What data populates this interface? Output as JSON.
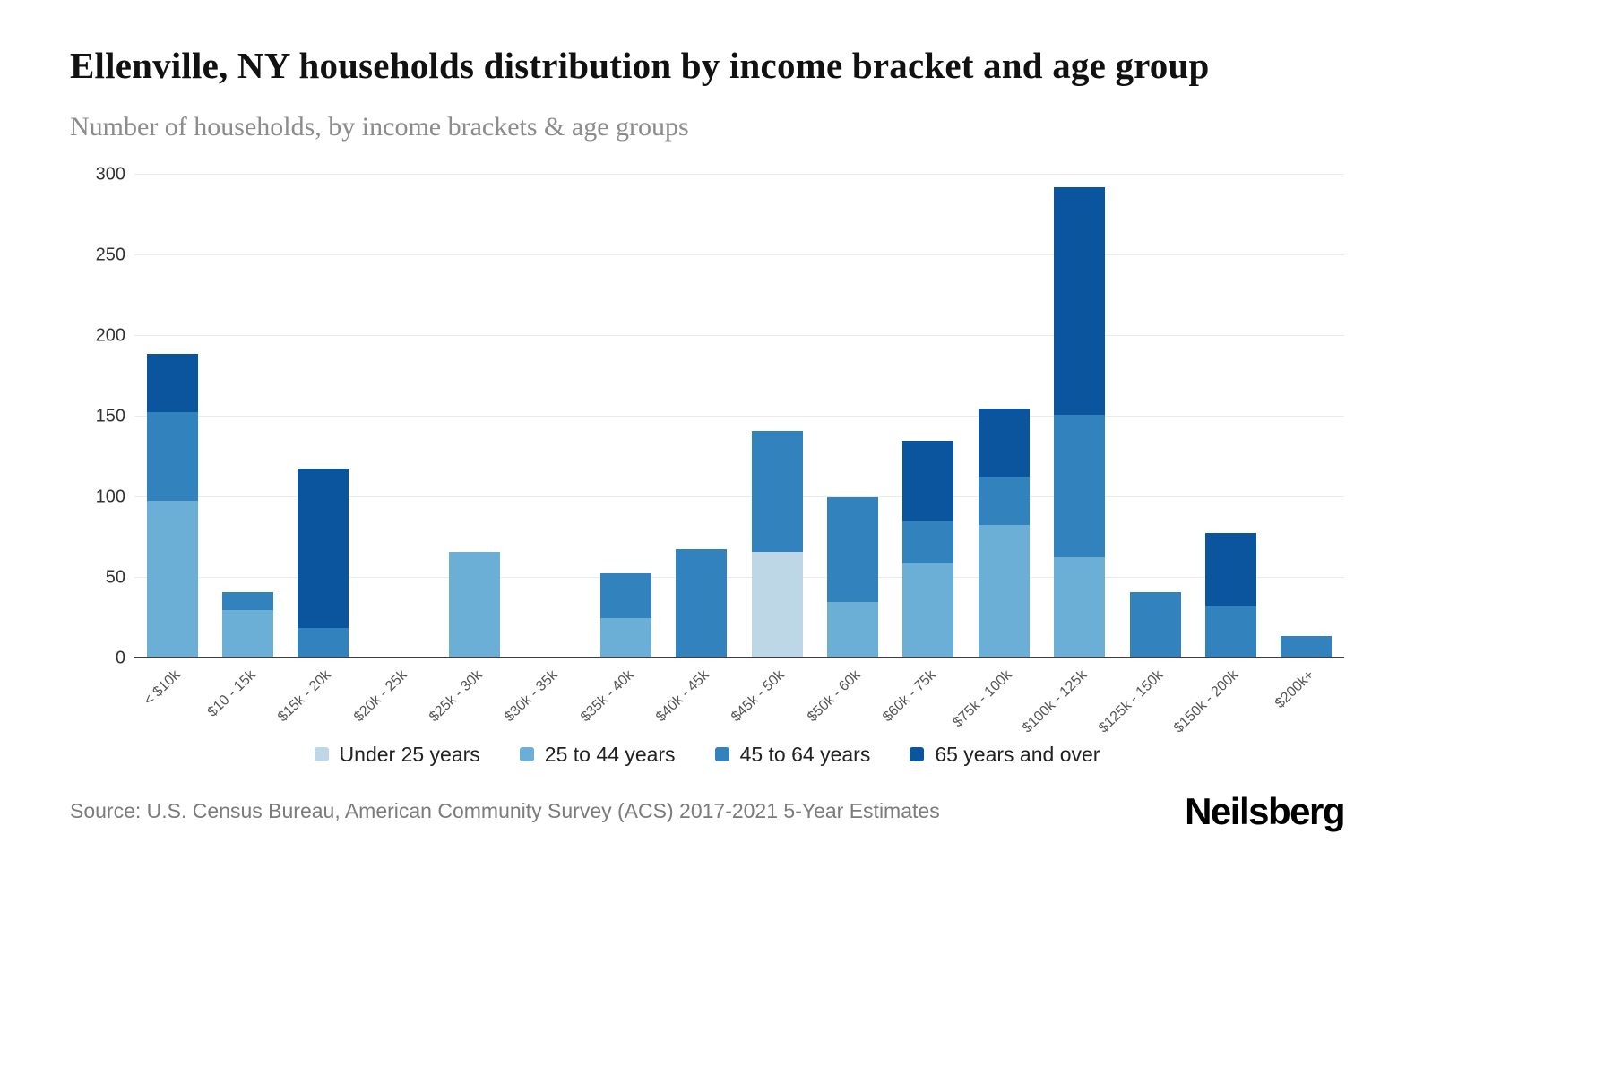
{
  "header": {
    "title": "Ellenville, NY households distribution by income bracket and age group",
    "subtitle": "Number of households, by income brackets & age groups"
  },
  "chart_data": {
    "type": "bar",
    "stacked": true,
    "title": "Ellenville, NY households distribution by income bracket and age group",
    "subtitle": "Number of households, by income brackets & age groups",
    "xlabel": "",
    "ylabel": "",
    "ylim": [
      0,
      300
    ],
    "yticks": [
      0,
      50,
      100,
      150,
      200,
      250,
      300
    ],
    "grid": true,
    "legend_position": "bottom",
    "categories": [
      "< $10k",
      "$10 - 15k",
      "$15k - 20k",
      "$20k - 25k",
      "$25k - 30k",
      "$30k - 35k",
      "$35k - 40k",
      "$40k - 45k",
      "$45k - 50k",
      "$50k - 60k",
      "$60k - 75k",
      "$75k - 100k",
      "$100k - 125k",
      "$125k - 150k",
      "$150k - 200k",
      "$200k+"
    ],
    "series": [
      {
        "name": "Under 25 years",
        "color": "#bdd7e7",
        "values": [
          0,
          0,
          0,
          0,
          0,
          0,
          0,
          0,
          66,
          0,
          0,
          0,
          0,
          0,
          0,
          0
        ]
      },
      {
        "name": "25 to 44 years",
        "color": "#6baed6",
        "values": [
          98,
          30,
          0,
          0,
          66,
          0,
          25,
          0,
          0,
          35,
          59,
          83,
          63,
          0,
          0,
          0
        ]
      },
      {
        "name": "45 to 64 years",
        "color": "#3182bd",
        "values": [
          55,
          11,
          19,
          0,
          0,
          0,
          28,
          68,
          75,
          65,
          26,
          30,
          88,
          41,
          32,
          14
        ]
      },
      {
        "name": "65 years and over",
        "color": "#0b559f",
        "values": [
          36,
          0,
          99,
          0,
          0,
          0,
          0,
          0,
          0,
          0,
          50,
          42,
          141,
          0,
          46,
          0
        ]
      }
    ]
  },
  "footer": {
    "source": "Source: U.S. Census Bureau, American Community Survey (ACS) 2017-2021 5-Year Estimates",
    "brand": "Neilsberg"
  }
}
